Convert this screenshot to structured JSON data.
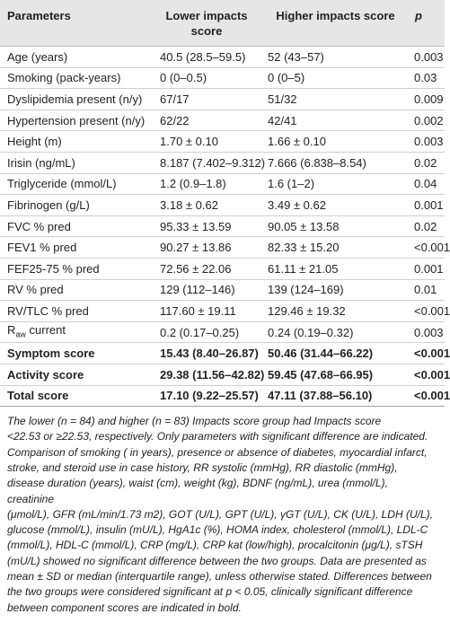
{
  "table": {
    "headers": [
      "Parameters",
      "Lower impacts score",
      "Higher impacts score",
      "p"
    ],
    "rows": [
      {
        "param": "Age (years)",
        "lower": "40.5 (28.5–59.5)",
        "higher": "52 (43–57)",
        "p": "0.003",
        "bold": false
      },
      {
        "param": "Smoking (pack-years)",
        "lower": "0 (0–0.5)",
        "higher": "0 (0–5)",
        "p": "0.03",
        "bold": false
      },
      {
        "param": "Dyslipidemia present (n/y)",
        "lower": "67/17",
        "higher": "51/32",
        "p": "0.009",
        "bold": false
      },
      {
        "param": "Hypertension present (n/y)",
        "lower": "62/22",
        "higher": "42/41",
        "p": "0.002",
        "bold": false
      },
      {
        "param": "Height (m)",
        "lower": "1.70 ± 0.10",
        "higher": "1.66 ± 0.10",
        "p": "0.003",
        "bold": false
      },
      {
        "param": "Irisin (ng/mL)",
        "lower": "8.187 (7.402–9.312)",
        "higher": "7.666 (6.838–8.54)",
        "p": "0.02",
        "bold": false
      },
      {
        "param": "Triglyceride (mmol/L)",
        "lower": "1.2 (0.9–1.8)",
        "higher": "1.6 (1–2)",
        "p": "0.04",
        "bold": false
      },
      {
        "param": "Fibrinogen (g/L)",
        "lower": "3.18 ± 0.62",
        "higher": "3.49 ± 0.62",
        "p": "0.001",
        "bold": false
      },
      {
        "param": "FVC % pred",
        "lower": "95.33 ± 13.59",
        "higher": "90.05 ± 13.58",
        "p": "0.02",
        "bold": false
      },
      {
        "param": "FEV1 % pred",
        "lower": "90.27 ± 13.86",
        "higher": "82.33 ± 15.20",
        "p": "<0.001",
        "bold": false
      },
      {
        "param": "FEF25-75 % pred",
        "lower": "72.56 ± 22.06",
        "higher": "61.11 ± 21.05",
        "p": "0.001",
        "bold": false
      },
      {
        "param": "RV % pred",
        "lower": "129 (112–146)",
        "higher": "139 (124–169)",
        "p": "0.01",
        "bold": false
      },
      {
        "param": "RV/TLC % pred",
        "lower": "117.60 ± 19.11",
        "higher": "129.46 ± 19.32",
        "p": "<0.001",
        "bold": false
      },
      {
        "param_main": "R",
        "param_sub": "aw",
        "param_rest": " current",
        "lower": "0.2 (0.17–0.25)",
        "higher": "0.24 (0.19–0.32)",
        "p": "0.003",
        "bold": false
      },
      {
        "param": "Symptom score",
        "lower": "15.43 (8.40–26.87)",
        "higher": "50.46 (31.44–66.22)",
        "p": "<0.001",
        "bold": true
      },
      {
        "param": "Activity score",
        "lower": "29.38 (11.56–42.82)",
        "higher": "59.45 (47.68–66.95)",
        "p": "<0.001",
        "bold": true
      },
      {
        "param": "Total score",
        "lower": "17.10 (9.22–25.57)",
        "higher": "47.11 (37.88–56.10)",
        "p": "<0.001",
        "bold": true
      }
    ]
  },
  "footnote": [
    "The lower (n = 84) and higher (n = 83) Impacts score group had Impacts score",
    "<22.53 or ≥22.53, respectively. Only parameters with significant difference are indicated.",
    "Comparison of smoking ( in years), presence or absence of diabetes, myocardial infarct,",
    "stroke, and steroid use in case history, RR systolic (mmHg), RR diastolic (mmHg),",
    "disease duration (years), waist (cm), weight (kg), BDNF (ng/mL), urea (mmol/L), creatinine",
    "(μmol/L), GFR (mL/min/1.73 m2), GOT (U/L), GPT (U/L), γGT (U/L), CK (U/L), LDH (U/L),",
    "glucose (mmol/L), insulin (mU/L), HgA1c (%), HOMA index, cholesterol (mmol/L), LDL-C",
    "(mmol/L), HDL-C (mmol/L), CRP (mg/L), CRP kat (low/high), procalcitonin (μg/L), sTSH",
    "(mU/L) showed no significant difference between the two groups. Data are presented as",
    "mean ± SD or median (interquartile range), unless otherwise stated. Differences between",
    "the two groups were considered significant at p < 0.05, clinically significant difference",
    "between component scores are indicated in bold."
  ]
}
